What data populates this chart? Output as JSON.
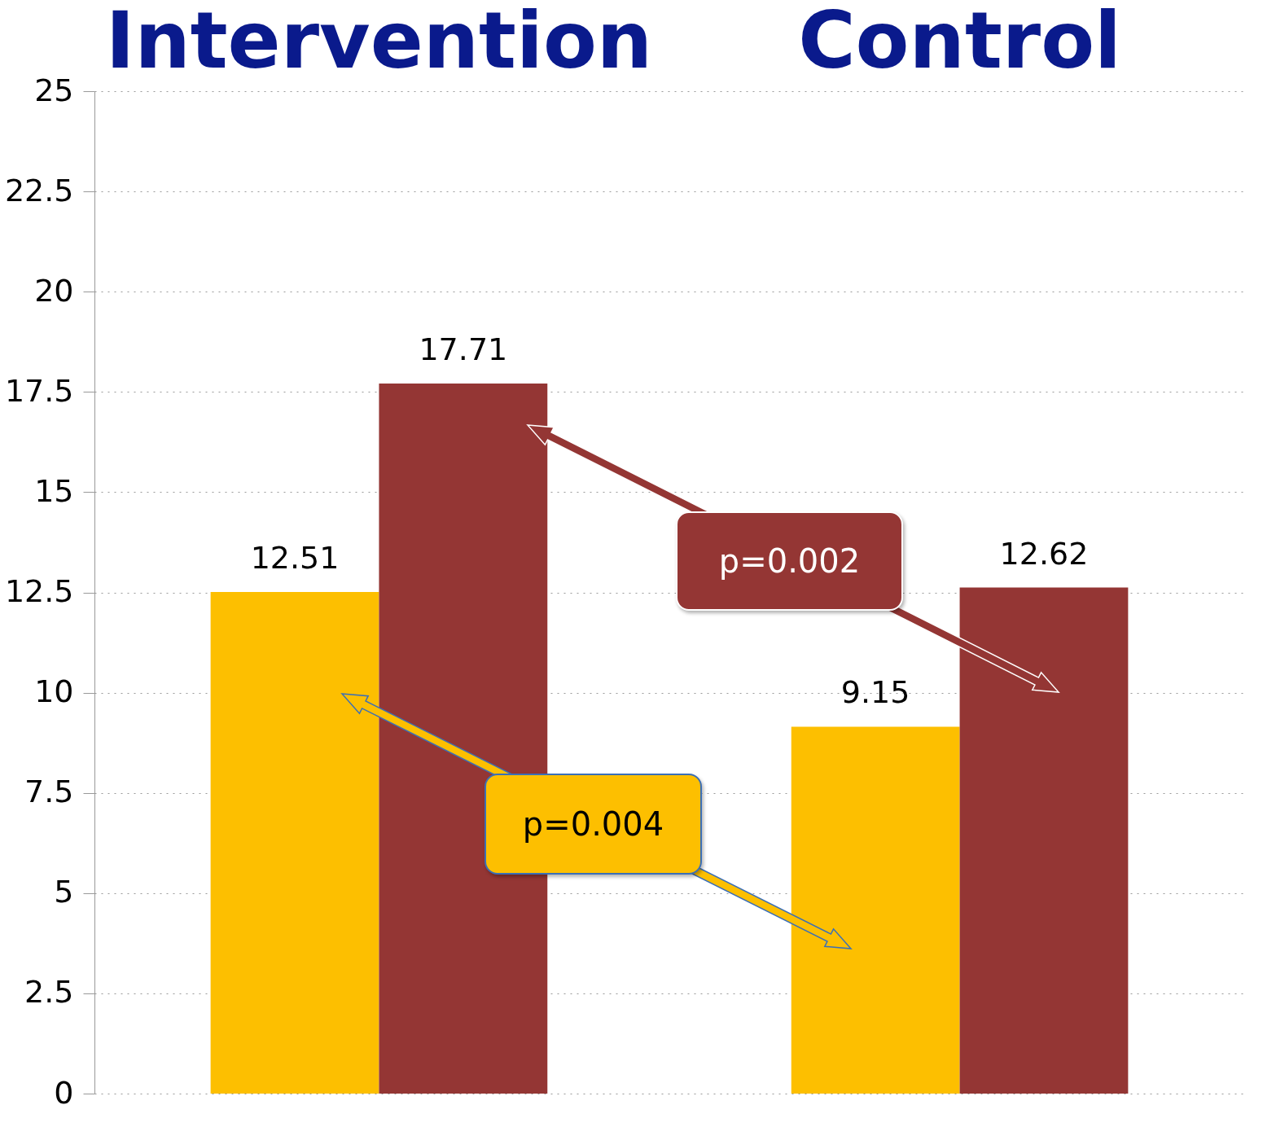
{
  "chart_data": {
    "type": "bar",
    "categories": [
      "Intervention",
      "Control"
    ],
    "series": [
      {
        "color": "#fdbf00",
        "values": [
          12.51,
          9.15
        ]
      },
      {
        "color": "#943634",
        "values": [
          17.71,
          12.62
        ]
      }
    ],
    "ylim": [
      0,
      25
    ],
    "yticks": [
      0,
      2.5,
      5,
      7.5,
      10,
      12.5,
      15,
      17.5,
      20,
      22.5,
      25
    ],
    "grid": "y",
    "data_labels": true,
    "annotations": [
      "p=0.002",
      "p=0.004"
    ]
  }
}
